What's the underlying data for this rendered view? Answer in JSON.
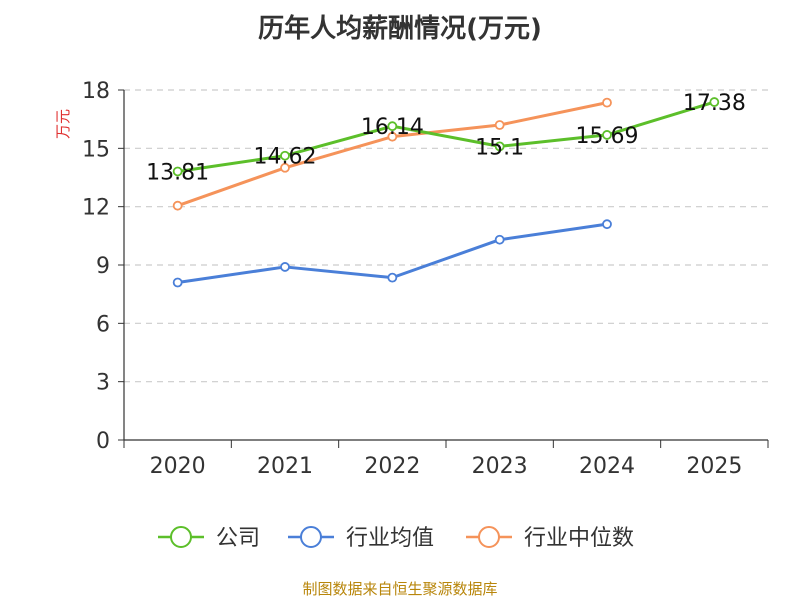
{
  "chart_data": {
    "type": "line",
    "title": "历年人均薪酬情况(万元)",
    "ylabel": "万元",
    "xlabel": "",
    "categories": [
      "2020",
      "2021",
      "2022",
      "2023",
      "2024",
      "2025"
    ],
    "ylim": [
      0,
      18
    ],
    "yticks": [
      0,
      3,
      6,
      9,
      12,
      15,
      18
    ],
    "grid": true,
    "legend_position": "bottom",
    "series": [
      {
        "name": "公司",
        "color": "#5cbf2a",
        "values": [
          13.81,
          14.62,
          16.14,
          15.1,
          15.69,
          17.38
        ],
        "labels": [
          "13.81",
          "14.62",
          "16.14",
          "15.1",
          "15.69",
          "17.38"
        ]
      },
      {
        "name": "行业均值",
        "color": "#4a7fd8",
        "values": [
          8.1,
          8.9,
          8.35,
          10.3,
          11.1,
          null
        ]
      },
      {
        "name": "行业中位数",
        "color": "#f5935a",
        "values": [
          12.05,
          14.0,
          15.6,
          16.2,
          17.35,
          null
        ]
      }
    ]
  },
  "footer": {
    "source": "制图数据来自恒生聚源数据库"
  }
}
